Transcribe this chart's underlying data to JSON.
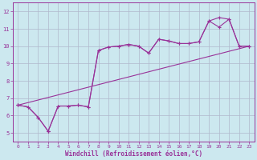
{
  "background_color": "#cce8ef",
  "grid_color": "#b0b8cc",
  "line_color": "#993399",
  "xlabel": "Windchill (Refroidissement éolien,°C)",
  "xlim": [
    -0.5,
    23.5
  ],
  "ylim": [
    4.5,
    12.5
  ],
  "xticks": [
    0,
    1,
    2,
    3,
    4,
    5,
    6,
    7,
    8,
    9,
    10,
    11,
    12,
    13,
    14,
    15,
    16,
    17,
    18,
    19,
    20,
    21,
    22,
    23
  ],
  "yticks": [
    5,
    6,
    7,
    8,
    9,
    10,
    11,
    12
  ],
  "line1_x": [
    0,
    23
  ],
  "line1_y": [
    6.6,
    10.0
  ],
  "line2_x": [
    0,
    1,
    2,
    3,
    3,
    4,
    5,
    6,
    7,
    8,
    9,
    10,
    11,
    12,
    13,
    14,
    15,
    16,
    17,
    18,
    19,
    20,
    21,
    22,
    23
  ],
  "line2_y": [
    6.6,
    6.5,
    5.9,
    5.1,
    5.1,
    6.55,
    6.55,
    6.6,
    6.5,
    9.75,
    9.95,
    10.0,
    10.1,
    10.0,
    9.6,
    10.4,
    10.3,
    10.15,
    10.15,
    10.25,
    11.45,
    11.1,
    11.55,
    10.0,
    10.0
  ],
  "line3_x": [
    0,
    1,
    2,
    3,
    3,
    4,
    5,
    6,
    7,
    8,
    9,
    10,
    11,
    12,
    13,
    14,
    15,
    16,
    17,
    18,
    19,
    20,
    21,
    22,
    23
  ],
  "line3_y": [
    6.6,
    6.5,
    5.9,
    5.1,
    5.1,
    6.55,
    6.55,
    6.6,
    6.5,
    9.75,
    9.95,
    10.0,
    10.1,
    10.0,
    9.6,
    10.4,
    10.3,
    10.15,
    10.15,
    10.25,
    11.45,
    11.65,
    11.55,
    10.0,
    10.0
  ],
  "tick_fontsize": 5,
  "xlabel_fontsize": 5.5
}
